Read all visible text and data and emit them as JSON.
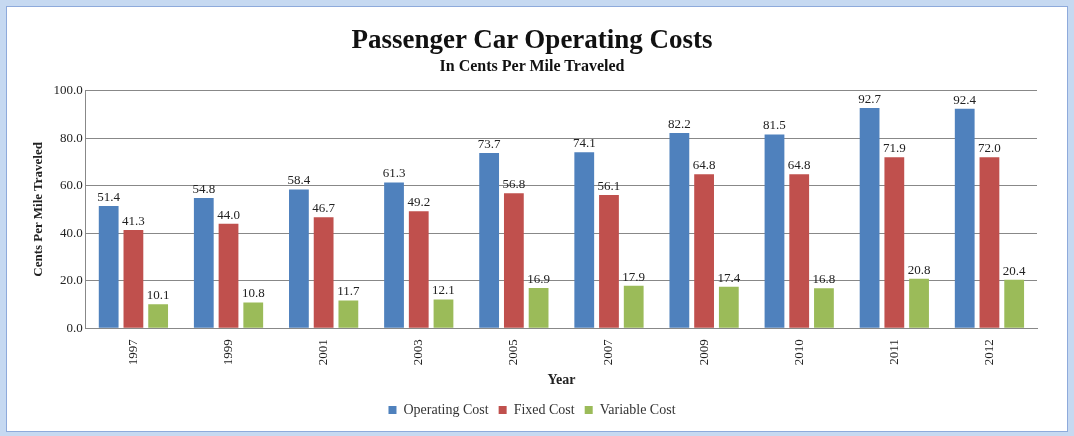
{
  "chart_data": {
    "type": "bar",
    "title": "Passenger Car Operating Costs",
    "subtitle": "In Cents Per Mile Traveled",
    "xlabel": "Year",
    "ylabel": "Cents Per Mile Traveled",
    "categories": [
      "1997",
      "1999",
      "2001",
      "2003",
      "2005",
      "2007",
      "2009",
      "2010",
      "2011",
      "2012"
    ],
    "series": [
      {
        "name": "Operating Cost",
        "color": "#4f81bd",
        "values": [
          51.4,
          54.8,
          58.4,
          61.3,
          73.7,
          74.1,
          82.2,
          81.5,
          92.7,
          92.4
        ],
        "value_labels": [
          "51.4",
          "54.8",
          "58.4",
          "61.3",
          "73.7",
          "74.1",
          "82.2",
          "81.5",
          "92.7",
          "92.4"
        ]
      },
      {
        "name": "Fixed Cost",
        "color": "#c0504d",
        "values": [
          41.3,
          44.0,
          46.7,
          49.2,
          56.8,
          56.1,
          64.8,
          64.8,
          71.9,
          72.0
        ],
        "value_labels": [
          "41.3",
          "44.0",
          "46.7",
          "49.2",
          "56.8",
          "56.1",
          "64.8",
          "64.8",
          "71.9",
          "72.0"
        ]
      },
      {
        "name": "Variable Cost",
        "color": "#9bbb59",
        "values": [
          10.1,
          10.8,
          11.7,
          12.1,
          16.9,
          17.9,
          17.4,
          16.8,
          20.8,
          20.4
        ],
        "value_labels": [
          "10.1",
          "10.8",
          "11.7",
          "12.1",
          "16.9",
          "17.9",
          "17.4",
          "16.8",
          "20.8",
          "20.4"
        ]
      }
    ],
    "ylim": [
      0,
      100
    ],
    "yticks": [
      {
        "value": 0,
        "label": "0.0"
      },
      {
        "value": 20,
        "label": "20.0"
      },
      {
        "value": 40,
        "label": "40.0"
      },
      {
        "value": 60,
        "label": "60.0"
      },
      {
        "value": 80,
        "label": "80.0"
      },
      {
        "value": 100,
        "label": "100.0"
      }
    ],
    "grid": "y",
    "legend": "bottom"
  }
}
